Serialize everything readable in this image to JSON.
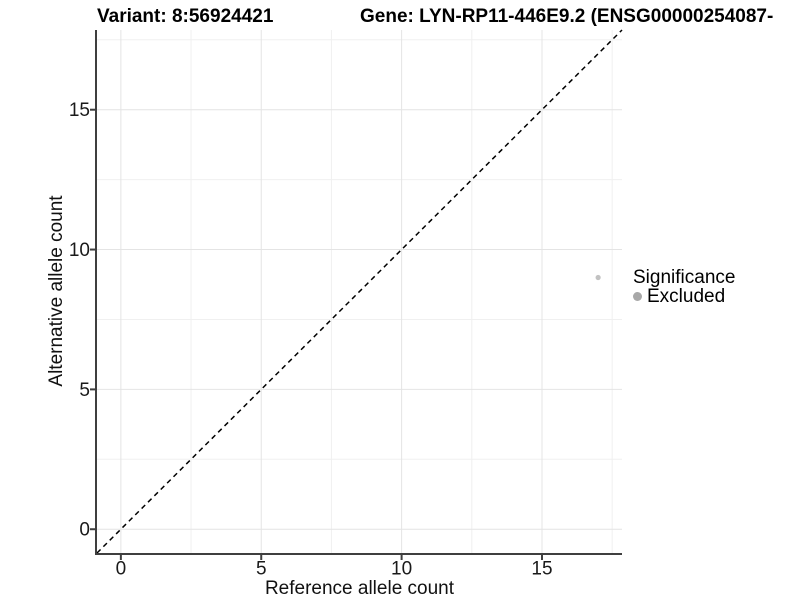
{
  "titles": {
    "variant": "Variant: 8:56924421",
    "gene": "Gene: LYN-RP11-446E9.2 (ENSG00000254087-"
  },
  "colors": {
    "background": "#ffffff",
    "axis_line": "#3f3f3f",
    "tick_mark": "#3f3f3f",
    "grid_major": "#e4e4e4",
    "grid_minor": "#f0f0f0",
    "tick_text": "#1a1a1a",
    "ref_line": "#000000",
    "point": "#c2c2c2",
    "legend_dot": "#a8a8a8"
  },
  "chart_data": {
    "type": "scatter",
    "title_left": "Variant: 8:56924421",
    "title_right": "Gene: LYN-RP11-446E9.2 (ENSG00000254087-",
    "xlabel": "Reference allele count",
    "ylabel": "Alternative allele count",
    "xlim": [
      -0.85,
      17.85
    ],
    "ylim": [
      -0.85,
      17.85
    ],
    "x_ticks": [
      0,
      5,
      10,
      15
    ],
    "y_ticks": [
      0,
      5,
      10,
      15
    ],
    "x_minor_ticks": [
      2.5,
      7.5,
      12.5,
      17.5
    ],
    "y_minor_ticks": [
      2.5,
      7.5,
      12.5,
      17.5
    ],
    "grid": true,
    "series": [
      {
        "name": "Excluded",
        "color": "#c2c2c2",
        "points": [
          {
            "x": 17,
            "y": 9
          }
        ]
      }
    ],
    "reference_line": {
      "type": "identity",
      "slope": 1,
      "intercept": 0,
      "style": "dashed",
      "color": "#000000"
    },
    "legend": {
      "title": "Significance",
      "position": "right",
      "items": [
        {
          "label": "Excluded",
          "color": "#a8a8a8"
        }
      ]
    }
  }
}
